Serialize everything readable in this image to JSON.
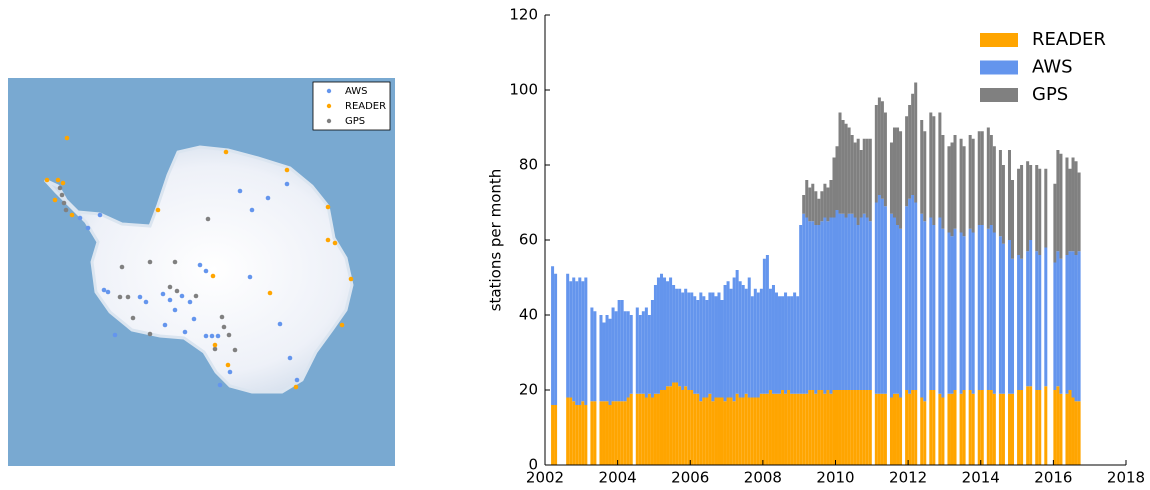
{
  "chart_data": [
    {
      "type": "map",
      "series": [
        {
          "name": "AWS",
          "color": "#6495ed"
        },
        {
          "name": "READER",
          "color": "#ffa500"
        },
        {
          "name": "GPS",
          "color": "#808080"
        }
      ]
    },
    {
      "type": "stacked_bar",
      "ylabel": "stations per month",
      "xlim": [
        2002,
        2018
      ],
      "xticks": [
        2002,
        2004,
        2006,
        2008,
        2010,
        2012,
        2014,
        2016,
        2018
      ],
      "ylim": [
        0,
        120
      ],
      "yticks": [
        0,
        20,
        40,
        60,
        80,
        100,
        120
      ],
      "legend": "upper right",
      "x": [
        2002.0,
        2002.083,
        2002.167,
        2002.25,
        2002.333,
        2002.417,
        2002.5,
        2002.583,
        2002.667,
        2002.75,
        2002.833,
        2002.917,
        2003.0,
        2003.083,
        2003.167,
        2003.25,
        2003.333,
        2003.417,
        2003.5,
        2003.583,
        2003.667,
        2003.75,
        2003.833,
        2003.917,
        2004.0,
        2004.083,
        2004.167,
        2004.25,
        2004.333,
        2004.417,
        2004.5,
        2004.583,
        2004.667,
        2004.75,
        2004.833,
        2004.917,
        2005.0,
        2005.083,
        2005.167,
        2005.25,
        2005.333,
        2005.417,
        2005.5,
        2005.583,
        2005.667,
        2005.75,
        2005.833,
        2005.917,
        2006.0,
        2006.083,
        2006.167,
        2006.25,
        2006.333,
        2006.417,
        2006.5,
        2006.583,
        2006.667,
        2006.75,
        2006.833,
        2006.917,
        2007.0,
        2007.083,
        2007.167,
        2007.25,
        2007.333,
        2007.417,
        2007.5,
        2007.583,
        2007.667,
        2007.75,
        2007.833,
        2007.917,
        2008.0,
        2008.083,
        2008.167,
        2008.25,
        2008.333,
        2008.417,
        2008.5,
        2008.583,
        2008.667,
        2008.75,
        2008.833,
        2008.917,
        2009.0,
        2009.083,
        2009.167,
        2009.25,
        2009.333,
        2009.417,
        2009.5,
        2009.583,
        2009.667,
        2009.75,
        2009.833,
        2009.917,
        2010.0,
        2010.083,
        2010.167,
        2010.25,
        2010.333,
        2010.417,
        2010.5,
        2010.583,
        2010.667,
        2010.75,
        2010.833,
        2010.917,
        2011.0,
        2011.083,
        2011.167,
        2011.25,
        2011.333,
        2011.417,
        2011.5,
        2011.583,
        2011.667,
        2011.75,
        2011.833,
        2011.917,
        2012.0,
        2012.083,
        2012.167,
        2012.25,
        2012.333,
        2012.417,
        2012.5,
        2012.583,
        2012.667,
        2012.75,
        2012.833,
        2012.917,
        2013.0,
        2013.083,
        2013.167,
        2013.25,
        2013.333,
        2013.417,
        2013.5,
        2013.583,
        2013.667,
        2013.75,
        2013.833,
        2013.917,
        2014.0,
        2014.083,
        2014.167,
        2014.25,
        2014.333,
        2014.417,
        2014.5,
        2014.583,
        2014.667,
        2014.75,
        2014.833,
        2014.917,
        2015.0,
        2015.083,
        2015.167,
        2015.25,
        2015.333,
        2015.417,
        2015.5,
        2015.583,
        2015.667,
        2015.75,
        2015.833,
        2015.917,
        2016.0,
        2016.083,
        2016.167,
        2016.25,
        2016.333,
        2016.417,
        2016.5,
        2016.583,
        2016.667
      ],
      "series": [
        {
          "name": "READER",
          "color": "#ffa500",
          "values": [
            0,
            0,
            16,
            16,
            0,
            0,
            0,
            18,
            18,
            17,
            16,
            16,
            17,
            16,
            0,
            17,
            17,
            0,
            17,
            17,
            17,
            16,
            17,
            17,
            17,
            17,
            17,
            18,
            19,
            0,
            19,
            19,
            19,
            18,
            19,
            18,
            19,
            19,
            20,
            20,
            21,
            21,
            22,
            22,
            21,
            20,
            21,
            20,
            20,
            19,
            19,
            17,
            18,
            18,
            19,
            17,
            18,
            18,
            18,
            17,
            18,
            18,
            17,
            19,
            18,
            18,
            19,
            18,
            18,
            18,
            18,
            19,
            19,
            19,
            20,
            19,
            19,
            19,
            20,
            19,
            20,
            19,
            19,
            19,
            19,
            19,
            19,
            20,
            20,
            19,
            20,
            20,
            19,
            20,
            19,
            20,
            20,
            20,
            20,
            20,
            20,
            20,
            20,
            20,
            20,
            20,
            20,
            20,
            0,
            19,
            19,
            19,
            19,
            0,
            18,
            19,
            19,
            18,
            0,
            20,
            19,
            20,
            20,
            0,
            18,
            17,
            0,
            20,
            20,
            0,
            19,
            18,
            0,
            19,
            19,
            20,
            0,
            19,
            20,
            0,
            20,
            19,
            0,
            20,
            20,
            0,
            20,
            20,
            19,
            0,
            19,
            19,
            0,
            19,
            19,
            0,
            20,
            20,
            0,
            21,
            21,
            0,
            20,
            20,
            0,
            21,
            0,
            0,
            20,
            21,
            19,
            0,
            19,
            20,
            18,
            17,
            17
          ]
        },
        {
          "name": "AWS",
          "color": "#6495ed",
          "values": [
            0,
            0,
            37,
            35,
            0,
            0,
            0,
            33,
            31,
            33,
            33,
            34,
            32,
            34,
            0,
            25,
            24,
            0,
            23,
            21,
            23,
            23,
            25,
            24,
            27,
            27,
            24,
            23,
            21,
            0,
            23,
            21,
            22,
            24,
            21,
            26,
            29,
            31,
            31,
            30,
            28,
            29,
            26,
            25,
            26,
            26,
            26,
            26,
            26,
            26,
            25,
            29,
            27,
            26,
            27,
            29,
            27,
            28,
            26,
            31,
            31,
            29,
            33,
            33,
            31,
            30,
            28,
            32,
            27,
            29,
            28,
            28,
            36,
            37,
            27,
            29,
            27,
            26,
            25,
            27,
            25,
            26,
            27,
            26,
            45,
            48,
            47,
            45,
            45,
            45,
            44,
            45,
            47,
            45,
            47,
            46,
            48,
            47,
            47,
            46,
            47,
            47,
            46,
            44,
            46,
            47,
            46,
            45,
            0,
            51,
            53,
            52,
            50,
            0,
            49,
            47,
            45,
            45,
            0,
            49,
            52,
            52,
            50,
            0,
            49,
            48,
            0,
            46,
            44,
            0,
            47,
            45,
            0,
            43,
            42,
            43,
            0,
            43,
            41,
            0,
            43,
            43,
            0,
            44,
            44,
            0,
            43,
            44,
            43,
            0,
            42,
            40,
            0,
            41,
            36,
            0,
            36,
            35,
            0,
            36,
            39,
            0,
            37,
            36,
            0,
            37,
            0,
            0,
            34,
            36,
            36,
            0,
            37,
            37,
            39,
            39,
            40
          ]
        },
        {
          "name": "GPS",
          "color": "#808080",
          "values": [
            0,
            0,
            0,
            0,
            0,
            0,
            0,
            0,
            0,
            0,
            0,
            0,
            0,
            0,
            0,
            0,
            0,
            0,
            0,
            0,
            0,
            0,
            0,
            0,
            0,
            0,
            0,
            0,
            0,
            0,
            0,
            0,
            0,
            0,
            0,
            0,
            0,
            0,
            0,
            0,
            0,
            0,
            0,
            0,
            0,
            0,
            0,
            0,
            0,
            0,
            0,
            0,
            0,
            0,
            0,
            0,
            0,
            0,
            0,
            0,
            0,
            0,
            0,
            0,
            0,
            0,
            0,
            0,
            0,
            0,
            0,
            0,
            0,
            0,
            0,
            0,
            0,
            0,
            0,
            0,
            0,
            0,
            0,
            0,
            0,
            5,
            10,
            9,
            10,
            9,
            7,
            8,
            9,
            9,
            10,
            16,
            17,
            27,
            25,
            25,
            23,
            21,
            20,
            23,
            18,
            20,
            21,
            22,
            0,
            26,
            26,
            26,
            25,
            0,
            19,
            24,
            26,
            26,
            0,
            24,
            25,
            27,
            32,
            0,
            25,
            24,
            0,
            28,
            29,
            0,
            28,
            25,
            0,
            23,
            25,
            25,
            0,
            25,
            24,
            0,
            25,
            25,
            0,
            25,
            25,
            0,
            27,
            24,
            23,
            0,
            23,
            21,
            0,
            24,
            21,
            0,
            23,
            25,
            0,
            24,
            20,
            0,
            23,
            23,
            0,
            21,
            0,
            0,
            21,
            27,
            28,
            0,
            26,
            22,
            25,
            25,
            21
          ]
        }
      ]
    }
  ]
}
